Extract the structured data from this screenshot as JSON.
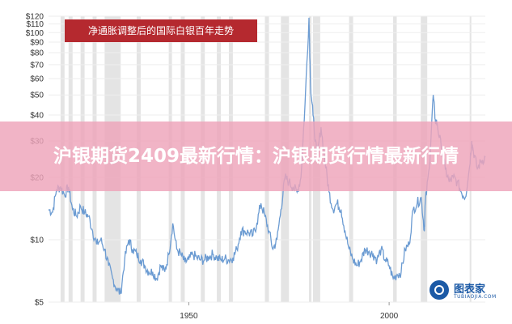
{
  "chart_data": {
    "type": "line",
    "title": "净通胀调整后的国际白银百年走势",
    "xlabel": "",
    "ylabel": "",
    "scale": "log",
    "ylim": [
      5,
      120
    ],
    "y_ticks": [
      {
        "value": 5,
        "label": "$5"
      },
      {
        "value": 10,
        "label": "$10"
      },
      {
        "value": 20,
        "label": "$20"
      },
      {
        "value": 30,
        "label": "$30"
      },
      {
        "value": 40,
        "label": "$40"
      },
      {
        "value": 50,
        "label": "$50"
      },
      {
        "value": 60,
        "label": "$60"
      },
      {
        "value": 70,
        "label": "$70"
      },
      {
        "value": 80,
        "label": "$80"
      },
      {
        "value": 90,
        "label": "$90"
      },
      {
        "value": 100,
        "label": "$100"
      },
      {
        "value": 110,
        "label": "$110"
      },
      {
        "value": 120,
        "label": "$120"
      }
    ],
    "xlim": [
      1915,
      2024
    ],
    "x_ticks": [
      {
        "value": 1950,
        "label": "1950"
      },
      {
        "value": 2000,
        "label": "2000"
      }
    ],
    "recessions": [
      [
        1918,
        1919
      ],
      [
        1920,
        1921
      ],
      [
        1923,
        1924
      ],
      [
        1926,
        1927
      ],
      [
        1929,
        1933
      ],
      [
        1937,
        1938
      ],
      [
        1945,
        1945.8
      ],
      [
        1948,
        1949
      ],
      [
        1953,
        1954
      ],
      [
        1957,
        1958
      ],
      [
        1960,
        1961
      ],
      [
        1969,
        1970
      ],
      [
        1973,
        1975
      ],
      [
        1980,
        1980.6
      ],
      [
        1981,
        1982.8
      ],
      [
        1990,
        1991
      ],
      [
        2001,
        2001.9
      ],
      [
        2007.9,
        2009.5
      ],
      [
        2020.1,
        2020.5
      ]
    ],
    "series": [
      {
        "color": "#6b9bd2",
        "points": [
          [
            1915,
            14
          ],
          [
            1916,
            13.6
          ],
          [
            1917,
            17.5
          ],
          [
            1918,
            18
          ],
          [
            1919,
            16.5
          ],
          [
            1920,
            18
          ],
          [
            1921,
            14
          ],
          [
            1922,
            13
          ],
          [
            1923,
            14.5
          ],
          [
            1924,
            13.5
          ],
          [
            1925,
            13
          ],
          [
            1926,
            11
          ],
          [
            1927,
            9.5
          ],
          [
            1928,
            10
          ],
          [
            1929,
            9
          ],
          [
            1930,
            7.5
          ],
          [
            1931,
            6.5
          ],
          [
            1932,
            5.8
          ],
          [
            1933,
            5.5
          ],
          [
            1934,
            8
          ],
          [
            1935,
            10
          ],
          [
            1936,
            9
          ],
          [
            1937,
            8.5
          ],
          [
            1938,
            8
          ],
          [
            1939,
            7.5
          ],
          [
            1940,
            7
          ],
          [
            1941,
            7
          ],
          [
            1942,
            6.5
          ],
          [
            1943,
            7.5
          ],
          [
            1944,
            7
          ],
          [
            1945,
            8.5
          ],
          [
            1946,
            12
          ],
          [
            1947,
            9
          ],
          [
            1948,
            8.5
          ],
          [
            1949,
            7.8
          ],
          [
            1950,
            8
          ],
          [
            1951,
            8.5
          ],
          [
            1952,
            8.2
          ],
          [
            1953,
            8
          ],
          [
            1954,
            8
          ],
          [
            1955,
            8.3
          ],
          [
            1956,
            8.5
          ],
          [
            1957,
            8.2
          ],
          [
            1958,
            8
          ],
          [
            1959,
            8.1
          ],
          [
            1960,
            8
          ],
          [
            1961,
            8.2
          ],
          [
            1962,
            9
          ],
          [
            1963,
            11
          ],
          [
            1964,
            11
          ],
          [
            1965,
            10.8
          ],
          [
            1966,
            10.5
          ],
          [
            1967,
            12
          ],
          [
            1968,
            15
          ],
          [
            1969,
            13
          ],
          [
            1970,
            11
          ],
          [
            1971,
            9
          ],
          [
            1972,
            10
          ],
          [
            1973,
            14
          ],
          [
            1974,
            20
          ],
          [
            1975,
            19
          ],
          [
            1976,
            18
          ],
          [
            1977,
            17
          ],
          [
            1978,
            20
          ],
          [
            1979,
            45
          ],
          [
            1980,
            118
          ],
          [
            1980.4,
            55
          ],
          [
            1981,
            40
          ],
          [
            1982,
            25
          ],
          [
            1983,
            35
          ],
          [
            1984,
            24
          ],
          [
            1985,
            17
          ],
          [
            1986,
            14
          ],
          [
            1987,
            15
          ],
          [
            1988,
            14
          ],
          [
            1989,
            11
          ],
          [
            1990,
            9
          ],
          [
            1991,
            8
          ],
          [
            1992,
            7.5
          ],
          [
            1993,
            8
          ],
          [
            1994,
            9
          ],
          [
            1995,
            8.8
          ],
          [
            1996,
            8.5
          ],
          [
            1997,
            8
          ],
          [
            1998,
            9
          ],
          [
            1999,
            8
          ],
          [
            2000,
            7.5
          ],
          [
            2001,
            6.5
          ],
          [
            2002,
            6.8
          ],
          [
            2003,
            7
          ],
          [
            2004,
            9
          ],
          [
            2005,
            9.5
          ],
          [
            2006,
            14
          ],
          [
            2007,
            15
          ],
          [
            2008,
            16
          ],
          [
            2008.8,
            11
          ],
          [
            2009,
            15
          ],
          [
            2010,
            22
          ],
          [
            2011,
            50
          ],
          [
            2011.5,
            38
          ],
          [
            2012,
            36
          ],
          [
            2013,
            28
          ],
          [
            2014,
            22
          ],
          [
            2015,
            19
          ],
          [
            2016,
            20
          ],
          [
            2017,
            19
          ],
          [
            2018,
            17
          ],
          [
            2019,
            16
          ],
          [
            2020,
            22
          ],
          [
            2020.6,
            30
          ],
          [
            2021,
            27
          ],
          [
            2022,
            22
          ],
          [
            2023,
            24
          ],
          [
            2024,
            25
          ]
        ]
      }
    ]
  },
  "banner": {
    "text": "沪银期货2409最新行情：沪银期货行情最新行情"
  },
  "watermark": {
    "name": "图表家",
    "sub": "TUBIAOJIA.COM"
  },
  "colors": {
    "line": "#6b9bd2",
    "recession": "#d9d9d9",
    "title_bg": "#b5292f",
    "banner_bg": "#eea3b9"
  }
}
